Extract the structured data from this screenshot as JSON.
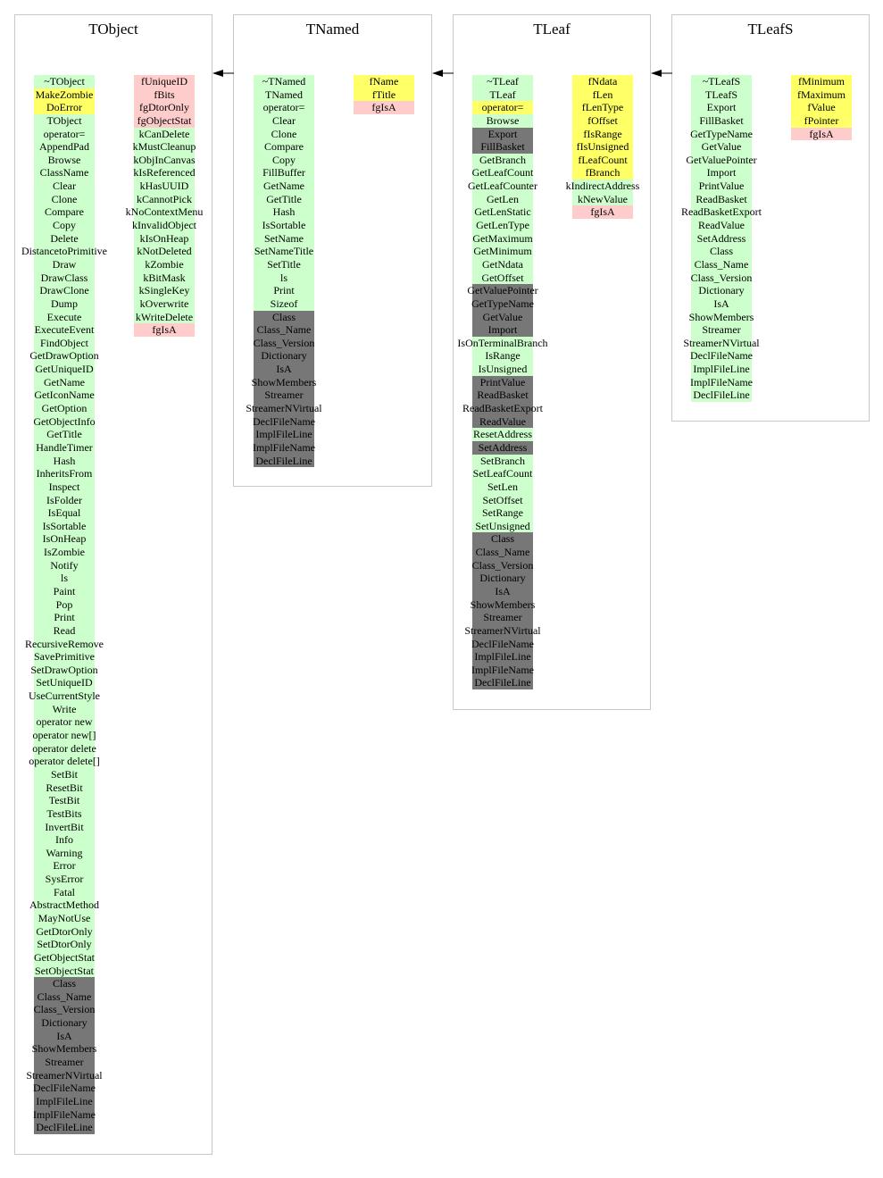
{
  "palette": {
    "green": "#ccffcc",
    "yellow": "#ffff66",
    "pink": "#ffcccc",
    "gray": "#777777"
  },
  "classes": [
    {
      "name": "TObject",
      "methods": [
        [
          "~TObject",
          "green"
        ],
        [
          "MakeZombie",
          "yellow"
        ],
        [
          "DoError",
          "yellow"
        ],
        [
          "TObject",
          "green"
        ],
        [
          "operator=",
          "green"
        ],
        [
          "AppendPad",
          "green"
        ],
        [
          "Browse",
          "green"
        ],
        [
          "ClassName",
          "green"
        ],
        [
          "Clear",
          "green"
        ],
        [
          "Clone",
          "green"
        ],
        [
          "Compare",
          "green"
        ],
        [
          "Copy",
          "green"
        ],
        [
          "Delete",
          "green"
        ],
        [
          "DistancetoPrimitive",
          "green"
        ],
        [
          "Draw",
          "green"
        ],
        [
          "DrawClass",
          "green"
        ],
        [
          "DrawClone",
          "green"
        ],
        [
          "Dump",
          "green"
        ],
        [
          "Execute",
          "green"
        ],
        [
          "ExecuteEvent",
          "green"
        ],
        [
          "FindObject",
          "green"
        ],
        [
          "GetDrawOption",
          "green"
        ],
        [
          "GetUniqueID",
          "green"
        ],
        [
          "GetName",
          "green"
        ],
        [
          "GetIconName",
          "green"
        ],
        [
          "GetOption",
          "green"
        ],
        [
          "GetObjectInfo",
          "green"
        ],
        [
          "GetTitle",
          "green"
        ],
        [
          "HandleTimer",
          "green"
        ],
        [
          "Hash",
          "green"
        ],
        [
          "InheritsFrom",
          "green"
        ],
        [
          "Inspect",
          "green"
        ],
        [
          "IsFolder",
          "green"
        ],
        [
          "IsEqual",
          "green"
        ],
        [
          "IsSortable",
          "green"
        ],
        [
          "IsOnHeap",
          "green"
        ],
        [
          "IsZombie",
          "green"
        ],
        [
          "Notify",
          "green"
        ],
        [
          "ls",
          "green"
        ],
        [
          "Paint",
          "green"
        ],
        [
          "Pop",
          "green"
        ],
        [
          "Print",
          "green"
        ],
        [
          "Read",
          "green"
        ],
        [
          "RecursiveRemove",
          "green"
        ],
        [
          "SavePrimitive",
          "green"
        ],
        [
          "SetDrawOption",
          "green"
        ],
        [
          "SetUniqueID",
          "green"
        ],
        [
          "UseCurrentStyle",
          "green"
        ],
        [
          "Write",
          "green"
        ],
        [
          "operator new",
          "green"
        ],
        [
          "operator new[]",
          "green"
        ],
        [
          "operator delete",
          "green"
        ],
        [
          "operator delete[]",
          "green"
        ],
        [
          "SetBit",
          "green"
        ],
        [
          "ResetBit",
          "green"
        ],
        [
          "TestBit",
          "green"
        ],
        [
          "TestBits",
          "green"
        ],
        [
          "InvertBit",
          "green"
        ],
        [
          "Info",
          "green"
        ],
        [
          "Warning",
          "green"
        ],
        [
          "Error",
          "green"
        ],
        [
          "SysError",
          "green"
        ],
        [
          "Fatal",
          "green"
        ],
        [
          "AbstractMethod",
          "green"
        ],
        [
          "MayNotUse",
          "green"
        ],
        [
          "GetDtorOnly",
          "green"
        ],
        [
          "SetDtorOnly",
          "green"
        ],
        [
          "GetObjectStat",
          "green"
        ],
        [
          "SetObjectStat",
          "green"
        ],
        [
          "Class",
          "gray"
        ],
        [
          "Class_Name",
          "gray"
        ],
        [
          "Class_Version",
          "gray"
        ],
        [
          "Dictionary",
          "gray"
        ],
        [
          "IsA",
          "gray"
        ],
        [
          "ShowMembers",
          "gray"
        ],
        [
          "Streamer",
          "gray"
        ],
        [
          "StreamerNVirtual",
          "gray"
        ],
        [
          "DeclFileName",
          "gray"
        ],
        [
          "ImplFileLine",
          "gray"
        ],
        [
          "ImplFileName",
          "gray"
        ],
        [
          "DeclFileLine",
          "gray"
        ]
      ],
      "fields": [
        [
          "fUniqueID",
          "pink"
        ],
        [
          "fBits",
          "pink"
        ],
        [
          "fgDtorOnly",
          "pink"
        ],
        [
          "fgObjectStat",
          "pink"
        ],
        [
          "kCanDelete",
          "green"
        ],
        [
          "kMustCleanup",
          "green"
        ],
        [
          "kObjInCanvas",
          "green"
        ],
        [
          "kIsReferenced",
          "green"
        ],
        [
          "kHasUUID",
          "green"
        ],
        [
          "kCannotPick",
          "green"
        ],
        [
          "kNoContextMenu",
          "green"
        ],
        [
          "kInvalidObject",
          "green"
        ],
        [
          "kIsOnHeap",
          "green"
        ],
        [
          "kNotDeleted",
          "green"
        ],
        [
          "kZombie",
          "green"
        ],
        [
          "kBitMask",
          "green"
        ],
        [
          "kSingleKey",
          "green"
        ],
        [
          "kOverwrite",
          "green"
        ],
        [
          "kWriteDelete",
          "green"
        ],
        [
          "fgIsA",
          "pink"
        ]
      ]
    },
    {
      "name": "TNamed",
      "methods": [
        [
          "~TNamed",
          "green"
        ],
        [
          "TNamed",
          "green"
        ],
        [
          "operator=",
          "green"
        ],
        [
          "Clear",
          "green"
        ],
        [
          "Clone",
          "green"
        ],
        [
          "Compare",
          "green"
        ],
        [
          "Copy",
          "green"
        ],
        [
          "FillBuffer",
          "green"
        ],
        [
          "GetName",
          "green"
        ],
        [
          "GetTitle",
          "green"
        ],
        [
          "Hash",
          "green"
        ],
        [
          "IsSortable",
          "green"
        ],
        [
          "SetName",
          "green"
        ],
        [
          "SetNameTitle",
          "green"
        ],
        [
          "SetTitle",
          "green"
        ],
        [
          "ls",
          "green"
        ],
        [
          "Print",
          "green"
        ],
        [
          "Sizeof",
          "green"
        ],
        [
          "Class",
          "gray"
        ],
        [
          "Class_Name",
          "gray"
        ],
        [
          "Class_Version",
          "gray"
        ],
        [
          "Dictionary",
          "gray"
        ],
        [
          "IsA",
          "gray"
        ],
        [
          "ShowMembers",
          "gray"
        ],
        [
          "Streamer",
          "gray"
        ],
        [
          "StreamerNVirtual",
          "gray"
        ],
        [
          "DeclFileName",
          "gray"
        ],
        [
          "ImplFileLine",
          "gray"
        ],
        [
          "ImplFileName",
          "gray"
        ],
        [
          "DeclFileLine",
          "gray"
        ]
      ],
      "fields": [
        [
          "fName",
          "yellow"
        ],
        [
          "fTitle",
          "yellow"
        ],
        [
          "fgIsA",
          "pink"
        ]
      ]
    },
    {
      "name": "TLeaf",
      "methods": [
        [
          "~TLeaf",
          "green"
        ],
        [
          "TLeaf",
          "green"
        ],
        [
          "operator=",
          "yellow"
        ],
        [
          "Browse",
          "green"
        ],
        [
          "Export",
          "gray"
        ],
        [
          "FillBasket",
          "gray"
        ],
        [
          "GetBranch",
          "green"
        ],
        [
          "GetLeafCount",
          "green"
        ],
        [
          "GetLeafCounter",
          "green"
        ],
        [
          "GetLen",
          "green"
        ],
        [
          "GetLenStatic",
          "green"
        ],
        [
          "GetLenType",
          "green"
        ],
        [
          "GetMaximum",
          "green"
        ],
        [
          "GetMinimum",
          "green"
        ],
        [
          "GetNdata",
          "green"
        ],
        [
          "GetOffset",
          "green"
        ],
        [
          "GetValuePointer",
          "gray"
        ],
        [
          "GetTypeName",
          "gray"
        ],
        [
          "GetValue",
          "gray"
        ],
        [
          "Import",
          "gray"
        ],
        [
          "IsOnTerminalBranch",
          "green"
        ],
        [
          "IsRange",
          "green"
        ],
        [
          "IsUnsigned",
          "green"
        ],
        [
          "PrintValue",
          "gray"
        ],
        [
          "ReadBasket",
          "gray"
        ],
        [
          "ReadBasketExport",
          "gray"
        ],
        [
          "ReadValue",
          "gray"
        ],
        [
          "ResetAddress",
          "green"
        ],
        [
          "SetAddress",
          "gray"
        ],
        [
          "SetBranch",
          "green"
        ],
        [
          "SetLeafCount",
          "green"
        ],
        [
          "SetLen",
          "green"
        ],
        [
          "SetOffset",
          "green"
        ],
        [
          "SetRange",
          "green"
        ],
        [
          "SetUnsigned",
          "green"
        ],
        [
          "Class",
          "gray"
        ],
        [
          "Class_Name",
          "gray"
        ],
        [
          "Class_Version",
          "gray"
        ],
        [
          "Dictionary",
          "gray"
        ],
        [
          "IsA",
          "gray"
        ],
        [
          "ShowMembers",
          "gray"
        ],
        [
          "Streamer",
          "gray"
        ],
        [
          "StreamerNVirtual",
          "gray"
        ],
        [
          "DeclFileName",
          "gray"
        ],
        [
          "ImplFileLine",
          "gray"
        ],
        [
          "ImplFileName",
          "gray"
        ],
        [
          "DeclFileLine",
          "gray"
        ]
      ],
      "fields": [
        [
          "fNdata",
          "yellow"
        ],
        [
          "fLen",
          "yellow"
        ],
        [
          "fLenType",
          "yellow"
        ],
        [
          "fOffset",
          "yellow"
        ],
        [
          "fIsRange",
          "yellow"
        ],
        [
          "fIsUnsigned",
          "yellow"
        ],
        [
          "fLeafCount",
          "yellow"
        ],
        [
          "fBranch",
          "yellow"
        ],
        [
          "kIndirectAddress",
          "green"
        ],
        [
          "kNewValue",
          "green"
        ],
        [
          "fgIsA",
          "pink"
        ]
      ]
    },
    {
      "name": "TLeafS",
      "methods": [
        [
          "~TLeafS",
          "green"
        ],
        [
          "TLeafS",
          "green"
        ],
        [
          "Export",
          "green"
        ],
        [
          "FillBasket",
          "green"
        ],
        [
          "GetTypeName",
          "green"
        ],
        [
          "GetValue",
          "green"
        ],
        [
          "GetValuePointer",
          "green"
        ],
        [
          "Import",
          "green"
        ],
        [
          "PrintValue",
          "green"
        ],
        [
          "ReadBasket",
          "green"
        ],
        [
          "ReadBasketExport",
          "green"
        ],
        [
          "ReadValue",
          "green"
        ],
        [
          "SetAddress",
          "green"
        ],
        [
          "Class",
          "green"
        ],
        [
          "Class_Name",
          "green"
        ],
        [
          "Class_Version",
          "green"
        ],
        [
          "Dictionary",
          "green"
        ],
        [
          "IsA",
          "green"
        ],
        [
          "ShowMembers",
          "green"
        ],
        [
          "Streamer",
          "green"
        ],
        [
          "StreamerNVirtual",
          "green"
        ],
        [
          "DeclFileName",
          "green"
        ],
        [
          "ImplFileLine",
          "green"
        ],
        [
          "ImplFileName",
          "green"
        ],
        [
          "DeclFileLine",
          "green"
        ]
      ],
      "fields": [
        [
          "fMinimum",
          "yellow"
        ],
        [
          "fMaximum",
          "yellow"
        ],
        [
          "fValue",
          "yellow"
        ],
        [
          "fPointer",
          "yellow"
        ],
        [
          "fgIsA",
          "pink"
        ]
      ]
    }
  ]
}
